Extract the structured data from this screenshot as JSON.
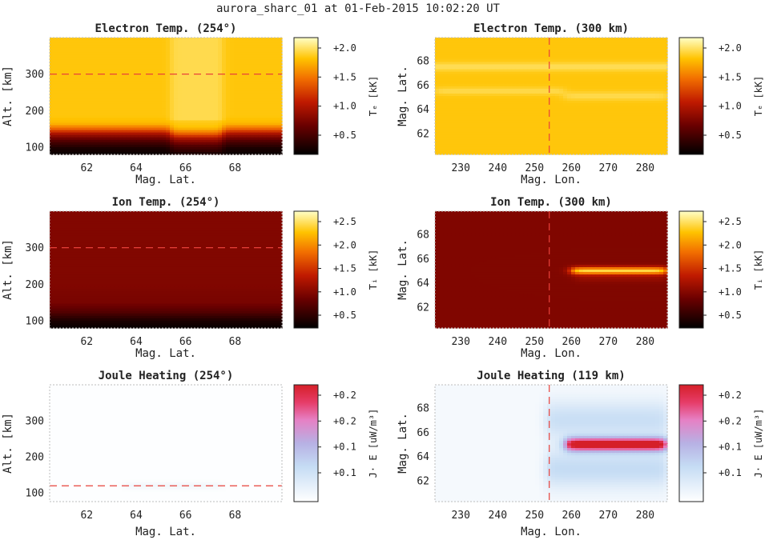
{
  "figure": {
    "title": "aurora_sharc_01 at 01-Feb-2015 10:02:20 UT"
  },
  "chart_data": [
    {
      "type": "heatmap",
      "title": "Electron Temp. (254°)",
      "xlabel": "Mag. Lat.",
      "ylabel": "Alt. [km]",
      "xlim": [
        60.5,
        69.9
      ],
      "ylim": [
        80,
        400
      ],
      "xticks": [
        "62",
        "64",
        "66",
        "68"
      ],
      "yticks": [
        "100",
        "200",
        "300"
      ],
      "colorbar": {
        "label": "Tₑ [kK]",
        "colormap": "hot",
        "ticks": [
          "+2.0",
          "+1.5",
          "+1.0",
          "+0.5"
        ],
        "range": [
          0.2,
          2.2
        ]
      },
      "marker_line": {
        "orientation": "horizontal",
        "value": 300
      },
      "field": {
        "kind": "profile",
        "profile": [
          [
            80,
            0.25
          ],
          [
            95,
            0.3
          ],
          [
            115,
            0.55
          ],
          [
            135,
            0.95
          ],
          [
            150,
            1.45
          ],
          [
            165,
            1.8
          ],
          [
            185,
            1.86
          ],
          [
            400,
            1.86
          ]
        ],
        "features": [
          {
            "x": [
              65.4,
              67.5
            ],
            "dy": -12,
            "delta": 0.12
          }
        ]
      }
    },
    {
      "type": "heatmap",
      "title": "Electron Temp. (300 km)",
      "xlabel": "Mag. Lon.",
      "ylabel": "Mag. Lat.",
      "xlim": [
        223,
        286
      ],
      "ylim": [
        60.3,
        69.9
      ],
      "xticks": [
        "230",
        "240",
        "250",
        "260",
        "270",
        "280"
      ],
      "yticks": [
        "62",
        "64",
        "66",
        "68"
      ],
      "colorbar": {
        "label": "Tₑ [kK]",
        "colormap": "hot",
        "ticks": [
          "+2.0",
          "+1.5",
          "+1.0",
          "+0.5"
        ],
        "range": [
          0.2,
          2.2
        ]
      },
      "marker_line": {
        "orientation": "vertical",
        "value": 254
      },
      "field": {
        "kind": "flat",
        "base": 1.86,
        "bands": [
          {
            "y": 67.5,
            "width": 0.35,
            "delta": 0.14
          },
          {
            "y": 65.5,
            "width": 0.3,
            "delta": 0.12,
            "x": [
              223,
              258
            ]
          },
          {
            "y": 65.1,
            "width": 0.35,
            "delta": 0.12,
            "x": [
              258,
              286
            ]
          }
        ]
      }
    },
    {
      "type": "heatmap",
      "title": "Ion Temp. (254°)",
      "xlabel": "Mag. Lat.",
      "ylabel": "Alt. [km]",
      "xlim": [
        60.5,
        69.9
      ],
      "ylim": [
        80,
        400
      ],
      "xticks": [
        "62",
        "64",
        "66",
        "68"
      ],
      "yticks": [
        "100",
        "200",
        "300"
      ],
      "colorbar": {
        "label": "Tᵢ [kK]",
        "colormap": "hot",
        "ticks": [
          "+2.5",
          "+2.0",
          "+1.5",
          "+1.0",
          "+0.5"
        ],
        "range": [
          0.2,
          2.7
        ]
      },
      "marker_line": {
        "orientation": "horizontal",
        "value": 300
      },
      "field": {
        "kind": "profile",
        "profile": [
          [
            80,
            0.25
          ],
          [
            100,
            0.35
          ],
          [
            125,
            0.7
          ],
          [
            150,
            0.9
          ],
          [
            200,
            0.95
          ],
          [
            400,
            0.96
          ]
        ],
        "features": []
      }
    },
    {
      "type": "heatmap",
      "title": "Ion Temp. (300 km)",
      "xlabel": "Mag. Lon.",
      "ylabel": "Mag. Lat.",
      "xlim": [
        223,
        286
      ],
      "ylim": [
        60.3,
        69.9
      ],
      "xticks": [
        "230",
        "240",
        "250",
        "260",
        "270",
        "280"
      ],
      "yticks": [
        "62",
        "64",
        "66",
        "68"
      ],
      "colorbar": {
        "label": "Tᵢ [kK]",
        "colormap": "hot",
        "ticks": [
          "+2.5",
          "+2.0",
          "+1.5",
          "+1.0",
          "+0.5"
        ],
        "range": [
          0.2,
          2.7
        ]
      },
      "marker_line": {
        "orientation": "vertical",
        "value": 254
      },
      "field": {
        "kind": "flat",
        "base": 0.95,
        "bands": [
          {
            "y": 65.0,
            "width": 0.3,
            "delta": 1.45,
            "x": [
              260,
              286
            ]
          },
          {
            "y": 64.35,
            "width": 0.3,
            "delta": 0.12,
            "x": [
              261,
              286
            ]
          }
        ]
      }
    },
    {
      "type": "heatmap",
      "title": "Joule Heating (254°)",
      "xlabel": "Mag. Lat.",
      "ylabel": "Alt. [km]",
      "xlim": [
        60.5,
        69.9
      ],
      "ylim": [
        75,
        400
      ],
      "xticks": [
        "62",
        "64",
        "66",
        "68"
      ],
      "yticks": [
        "100",
        "200",
        "300"
      ],
      "colorbar": {
        "label": "J· E [uW/m³]",
        "colormap": "bwr",
        "ticks": [
          "+0.2",
          "+0.2",
          "+0.1",
          "+0.1"
        ],
        "range": [
          0.0,
          0.2
        ]
      },
      "marker_line": {
        "orientation": "horizontal",
        "value": 119
      },
      "field": {
        "kind": "flat",
        "base": 0.002,
        "bands": [
          {
            "y": 119,
            "width": 10,
            "delta": 0.012,
            "x": [
              63.5,
              67.5
            ]
          }
        ]
      }
    },
    {
      "type": "heatmap",
      "title": "Joule Heating (119 km)",
      "xlabel": "Mag. Lon.",
      "ylabel": "Mag. Lat.",
      "xlim": [
        223,
        286
      ],
      "ylim": [
        60.3,
        69.9
      ],
      "xticks": [
        "230",
        "240",
        "250",
        "260",
        "270",
        "280"
      ],
      "yticks": [
        "62",
        "64",
        "66",
        "68"
      ],
      "colorbar": {
        "label": "J· E [uW/m³]",
        "colormap": "bwr",
        "ticks": [
          "+0.2",
          "+0.2",
          "+0.1",
          "+0.1"
        ],
        "range": [
          0.0,
          0.2
        ]
      },
      "marker_line": {
        "orientation": "vertical",
        "value": 254
      },
      "field": {
        "kind": "joule",
        "base": 0.01,
        "bands": [
          {
            "y": 65.0,
            "width": 0.55,
            "delta": 0.2,
            "x": [
              258.5,
              286
            ]
          },
          {
            "y": 67.0,
            "width": 1.6,
            "delta": 0.045,
            "x": [
              253,
              286
            ]
          },
          {
            "y": 63.0,
            "width": 1.6,
            "delta": 0.05,
            "x": [
              253,
              286
            ]
          }
        ]
      }
    }
  ],
  "colors": {
    "marker_line": "#e8413a",
    "axis_frame": "#bdbdbd",
    "tick_text": "#222222"
  }
}
